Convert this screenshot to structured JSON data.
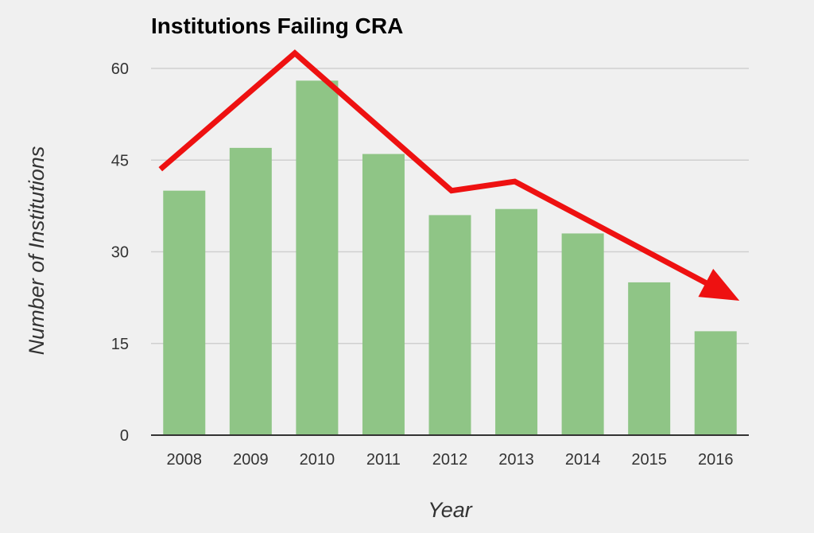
{
  "chart_data": {
    "type": "bar",
    "title": "Institutions Failing CRA",
    "xlabel": "Year",
    "ylabel": "Number of Institutions",
    "categories": [
      "2008",
      "2009",
      "2010",
      "2011",
      "2012",
      "2013",
      "2014",
      "2015",
      "2016"
    ],
    "values": [
      40,
      47,
      58,
      46,
      36,
      37,
      33,
      25,
      17
    ],
    "ylim": [
      0,
      60
    ],
    "yticks": [
      "0",
      "15",
      "30",
      "45",
      "60"
    ],
    "grid": true,
    "legend": "none",
    "bar_color": "#8fc586",
    "annotation": {
      "type": "trend-arrow",
      "color": "#ee1111",
      "y_values": [
        43.5,
        62.5,
        40,
        41.5,
        22
      ]
    }
  }
}
